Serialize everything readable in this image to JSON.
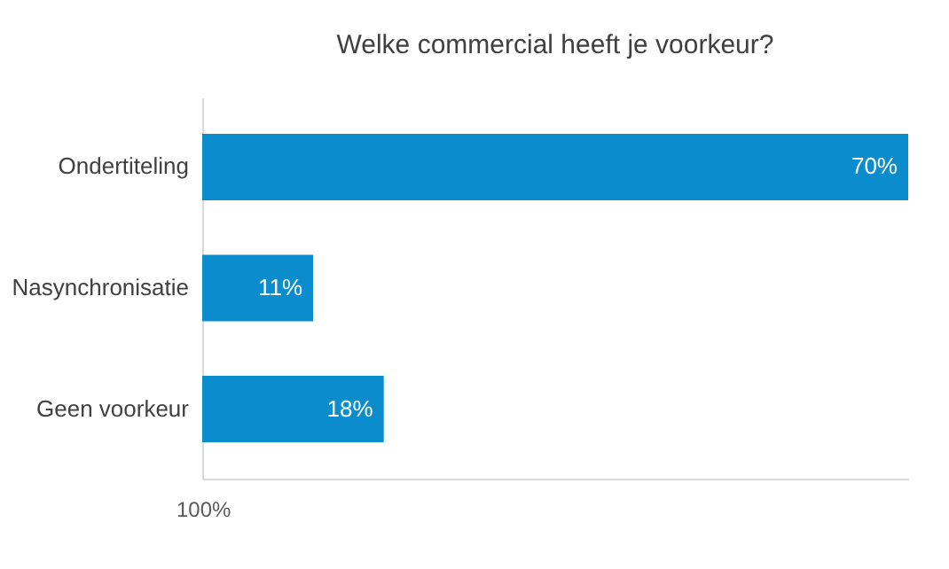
{
  "chart_data": {
    "type": "bar",
    "orientation": "horizontal",
    "title": "Welke commercial heeft je voorkeur?",
    "categories": [
      "Ondertiteling",
      "Nasynchronisatie",
      "Geen voorkeur"
    ],
    "values": [
      70,
      11,
      18
    ],
    "value_labels": [
      "70%",
      "11%",
      "18%"
    ],
    "color": "#0a8ccd",
    "annotations": [
      "100%"
    ]
  }
}
